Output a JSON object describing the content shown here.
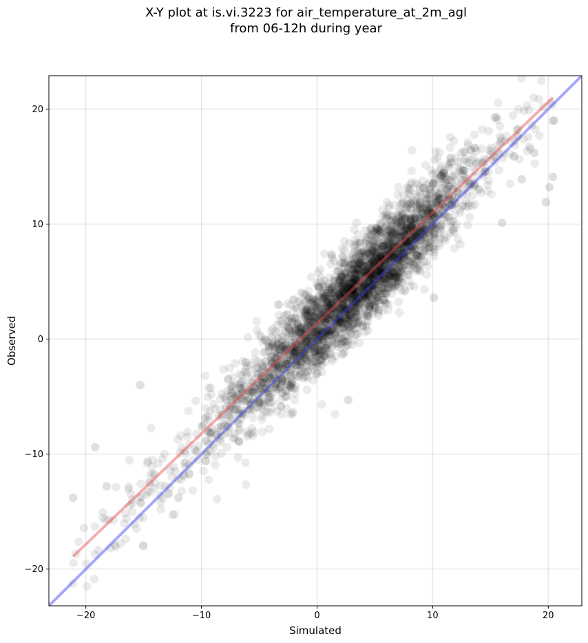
{
  "chart_data": {
    "type": "scatter",
    "title": "X-Y plot at is.vi.3223 for air_temperature_at_2m_agl",
    "subtitle": "from 06-12h during year",
    "xlabel": "Simulated",
    "ylabel": "Observed",
    "xlim": [
      -23.2,
      22.9
    ],
    "ylim": [
      -23.2,
      22.9
    ],
    "xticks": [
      -20,
      -10,
      0,
      10,
      20
    ],
    "yticks": [
      -20,
      -10,
      0,
      10,
      20
    ],
    "xtick_labels": [
      "−20",
      "−10",
      "0",
      "10",
      "20"
    ],
    "ytick_labels": [
      "−20",
      "−10",
      "0",
      "10",
      "20"
    ],
    "grid": true,
    "scatter": {
      "color": "#000000",
      "alpha": 0.08,
      "approx_count": 3500,
      "slope": 0.985,
      "intercept": 1.05,
      "spread_sd": 1.9,
      "x_range": [
        -21.2,
        21.0
      ],
      "sample_outliers": [
        {
          "x": -21.1,
          "y": -13.8
        },
        {
          "x": -19.2,
          "y": -9.4
        },
        {
          "x": -15.3,
          "y": -4.0
        },
        {
          "x": -18.2,
          "y": -12.8
        },
        {
          "x": -12.0,
          "y": -13.8
        },
        {
          "x": 2.7,
          "y": -5.3
        },
        {
          "x": 10.1,
          "y": 3.6
        },
        {
          "x": 19.8,
          "y": 11.9
        },
        {
          "x": 20.1,
          "y": 13.2
        },
        {
          "x": 20.4,
          "y": 14.1
        },
        {
          "x": 20.5,
          "y": 19.0
        },
        {
          "x": 18.8,
          "y": 16.2
        },
        {
          "x": 17.7,
          "y": 13.9
        },
        {
          "x": 16.0,
          "y": 10.1
        },
        {
          "x": 17.3,
          "y": 18.2
        },
        {
          "x": 15.5,
          "y": 19.3
        }
      ]
    },
    "lines": [
      {
        "role": "fit",
        "color": "#e84a4a",
        "alpha": 0.45,
        "x": [
          -21.1,
          20.4
        ],
        "y": [
          -18.9,
          21.0
        ]
      },
      {
        "role": "identity",
        "color": "#3c3cf0",
        "alpha": 0.45,
        "x": [
          -23.2,
          22.9
        ],
        "y": [
          -23.2,
          22.9
        ]
      }
    ]
  }
}
